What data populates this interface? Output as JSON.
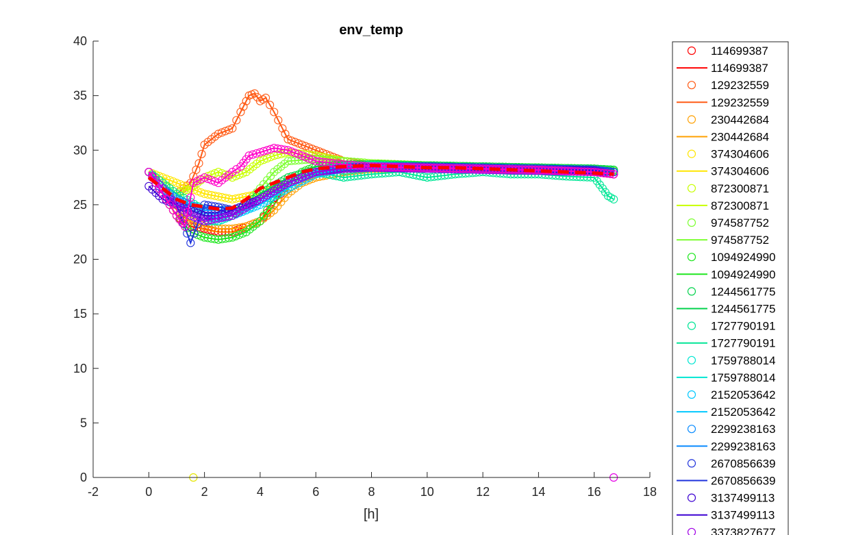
{
  "chart_data": {
    "type": "scatter",
    "title": "env_temp",
    "xlabel": "[h]",
    "ylabel": "",
    "xlim": [
      -2,
      18
    ],
    "ylim": [
      0,
      40
    ],
    "xticks": [
      -2,
      0,
      2,
      4,
      6,
      8,
      10,
      12,
      14,
      16,
      18
    ],
    "yticks": [
      0,
      5,
      10,
      15,
      20,
      25,
      30,
      35,
      40
    ],
    "grid": false,
    "legend_placement": "outside-right",
    "mean_line": {
      "color": "#ff0000",
      "style": "dashed",
      "x": [
        0,
        0.5,
        1,
        1.5,
        2,
        2.5,
        3,
        3.5,
        4,
        4.5,
        5,
        5.5,
        6,
        7,
        8,
        9,
        10,
        11,
        12,
        13,
        14,
        15,
        16,
        16.7
      ],
      "y": [
        27.5,
        26.5,
        25.5,
        25.0,
        24.8,
        24.6,
        24.7,
        25.5,
        26.5,
        27.0,
        27.5,
        28.0,
        28.3,
        28.5,
        28.6,
        28.5,
        28.4,
        28.4,
        28.3,
        28.2,
        28.1,
        28.0,
        27.9,
        27.8
      ]
    },
    "series": [
      {
        "name": "114699387",
        "color": "#ff0000",
        "x": [
          0,
          0.5,
          1,
          1.5,
          2,
          2.5,
          3,
          3.5,
          4,
          4.5,
          5,
          6,
          7,
          8,
          10,
          12,
          14,
          16,
          16.7
        ],
        "y": [
          28.0,
          26.0,
          24.0,
          23.0,
          22.8,
          22.5,
          22.5,
          23.0,
          23.5,
          25.0,
          27.0,
          28.0,
          28.5,
          28.6,
          28.5,
          28.4,
          28.2,
          28.0,
          27.8
        ]
      },
      {
        "name": "129232559",
        "color": "#ff5a14",
        "x": [
          0,
          0.5,
          1,
          1.5,
          1.8,
          2,
          2.5,
          3,
          3.3,
          3.6,
          3.8,
          4,
          4.2,
          4.5,
          4.8,
          5,
          5.5,
          6,
          6.5,
          7,
          8,
          10,
          12,
          14,
          16,
          16.7
        ],
        "y": [
          28.0,
          27.0,
          26.0,
          27.0,
          28.8,
          30.5,
          31.5,
          32.0,
          33.5,
          35.0,
          35.2,
          34.5,
          34.8,
          33.5,
          32.0,
          31.0,
          30.5,
          30.0,
          29.5,
          29.0,
          28.6,
          28.5,
          28.4,
          28.3,
          28.2,
          28.0
        ]
      },
      {
        "name": "230442684",
        "color": "#ffa000",
        "x": [
          0,
          0.5,
          1,
          1.5,
          2,
          2.5,
          3,
          3.5,
          4,
          4.5,
          5,
          5.5,
          6,
          7,
          8,
          10,
          12,
          14,
          16,
          16.7
        ],
        "y": [
          28.0,
          26.5,
          24.5,
          23.5,
          23.0,
          22.8,
          22.8,
          23.0,
          23.5,
          24.5,
          26.0,
          27.0,
          27.5,
          28.0,
          28.3,
          28.4,
          28.3,
          28.2,
          28.1,
          28.0
        ]
      },
      {
        "name": "374304606",
        "color": "#ffe600",
        "x": [
          0,
          0.5,
          1,
          1.5,
          2,
          3,
          4,
          5,
          6,
          7,
          8,
          10,
          12,
          14,
          16,
          16.7
        ],
        "y": [
          28.0,
          27.5,
          27.0,
          26.5,
          26.0,
          25.5,
          26.0,
          27.0,
          28.0,
          28.5,
          28.6,
          28.5,
          28.4,
          28.3,
          28.2,
          28.0
        ]
      },
      {
        "name": "872300871",
        "color": "#c8ff00",
        "x": [
          0,
          0.5,
          1,
          1.5,
          2,
          2.5,
          3,
          3.5,
          4,
          4.5,
          5,
          6,
          7,
          8,
          10,
          12,
          14,
          16,
          16.7
        ],
        "y": [
          28.0,
          27.0,
          26.0,
          26.5,
          27.5,
          28.0,
          27.5,
          28.0,
          29.0,
          29.5,
          29.8,
          29.5,
          29.0,
          28.8,
          28.6,
          28.5,
          28.4,
          28.3,
          28.1
        ]
      },
      {
        "name": "974587752",
        "color": "#7dff32",
        "x": [
          0,
          0.5,
          1,
          1.5,
          2,
          2.5,
          3,
          3.5,
          4,
          4.5,
          5,
          6,
          7,
          8,
          10,
          12,
          14,
          16,
          16.7
        ],
        "y": [
          28.0,
          27.0,
          25.5,
          24.5,
          24.0,
          23.8,
          24.0,
          25.0,
          26.5,
          28.0,
          29.0,
          29.2,
          29.0,
          28.8,
          28.6,
          28.5,
          28.4,
          28.3,
          28.1
        ]
      },
      {
        "name": "1094924990",
        "color": "#1ee61e",
        "x": [
          0,
          0.5,
          1,
          1.5,
          2,
          2.5,
          3,
          3.5,
          4,
          4.5,
          5,
          5.5,
          6,
          7,
          8,
          10,
          12,
          14,
          16,
          16.7
        ],
        "y": [
          28.0,
          26.0,
          24.0,
          22.5,
          22.0,
          21.8,
          22.0,
          22.5,
          23.5,
          25.5,
          27.0,
          28.0,
          28.5,
          28.7,
          28.7,
          28.6,
          28.5,
          28.4,
          28.3,
          28.2
        ]
      },
      {
        "name": "1244561775",
        "color": "#00d24b",
        "x": [
          0,
          0.5,
          1,
          1.5,
          2,
          2.5,
          3,
          3.5,
          4,
          5,
          6,
          7,
          8,
          10,
          12,
          14,
          16,
          16.7
        ],
        "y": [
          28.0,
          26.5,
          25.0,
          24.0,
          23.5,
          23.5,
          24.0,
          25.0,
          26.0,
          27.5,
          28.2,
          28.6,
          28.7,
          28.6,
          28.5,
          28.4,
          28.3,
          28.2
        ]
      },
      {
        "name": "1727790191",
        "color": "#00e696",
        "x": [
          0,
          1,
          2,
          3,
          4,
          5,
          6,
          7,
          8,
          9,
          10,
          11,
          12,
          13,
          14,
          15,
          16,
          16.3,
          16.5,
          16.7
        ],
        "y": [
          28.0,
          26.0,
          24.5,
          24.5,
          25.5,
          27.0,
          28.0,
          27.5,
          27.8,
          28.0,
          27.5,
          27.8,
          28.0,
          27.8,
          27.8,
          27.6,
          27.5,
          26.5,
          25.8,
          25.5
        ]
      },
      {
        "name": "1759788014",
        "color": "#00e6d2",
        "x": [
          0,
          0.5,
          1,
          1.5,
          2,
          2.5,
          3,
          3.5,
          4,
          5,
          6,
          7,
          8,
          10,
          12,
          14,
          16,
          16.7
        ],
        "y": [
          28.0,
          26.5,
          25.0,
          24.0,
          23.5,
          23.5,
          24.0,
          24.5,
          25.5,
          27.0,
          28.0,
          28.5,
          28.6,
          28.5,
          28.4,
          28.3,
          28.2,
          28.0
        ]
      },
      {
        "name": "2152053642",
        "color": "#00c8ff",
        "x": [
          0,
          0.5,
          1,
          1.5,
          2,
          2.5,
          3,
          3.5,
          4,
          5,
          6,
          7,
          8,
          10,
          12,
          14,
          16,
          16.7
        ],
        "y": [
          28.0,
          26.5,
          25.5,
          24.5,
          24.0,
          23.8,
          24.0,
          24.5,
          25.0,
          26.5,
          27.8,
          28.3,
          28.5,
          28.4,
          28.3,
          28.2,
          28.1,
          28.0
        ]
      },
      {
        "name": "2299238163",
        "color": "#0a8cff",
        "x": [
          0,
          0.5,
          1,
          1.5,
          2,
          2.5,
          3,
          3.5,
          4,
          5,
          6,
          7,
          8,
          10,
          12,
          14,
          16,
          16.7
        ],
        "y": [
          28.0,
          26.5,
          25.5,
          25.0,
          24.5,
          24.5,
          24.5,
          25.0,
          25.5,
          27.0,
          28.0,
          28.4,
          28.5,
          28.5,
          28.4,
          28.3,
          28.2,
          28.0
        ]
      },
      {
        "name": "2670856639",
        "color": "#1e32dc",
        "x": [
          0,
          0.5,
          1,
          1.5,
          2,
          2.5,
          3,
          3.5,
          4,
          5,
          6,
          7,
          8,
          10,
          12,
          14,
          16,
          16.7
        ],
        "y": [
          28.0,
          26.0,
          25.0,
          21.5,
          25.0,
          24.8,
          24.5,
          25.0,
          25.5,
          27.0,
          28.0,
          28.4,
          28.5,
          28.5,
          28.4,
          28.3,
          28.2,
          28.0
        ]
      },
      {
        "name": "3137499113",
        "color": "#3c00d2",
        "x": [
          0,
          0.5,
          1,
          1.5,
          2,
          2.5,
          3,
          3.5,
          4,
          5,
          6,
          7,
          8,
          10,
          12,
          14,
          16,
          16.7
        ],
        "y": [
          26.7,
          25.5,
          25.0,
          24.5,
          24.0,
          24.0,
          24.5,
          25.0,
          25.5,
          27.0,
          28.0,
          28.3,
          28.4,
          28.4,
          28.3,
          28.2,
          28.1,
          27.8
        ]
      },
      {
        "name": "3373827677",
        "color": "#a000e6",
        "x": [
          0,
          0.5,
          1,
          1.5,
          2,
          3,
          4,
          5,
          6,
          7,
          8,
          10,
          12,
          14,
          16,
          16.7
        ],
        "y": [
          28.0,
          26.5,
          25.0,
          24.0,
          23.5,
          24.0,
          25.5,
          27.0,
          28.0,
          28.3,
          28.4,
          28.3,
          28.2,
          28.1,
          28.0,
          27.8
        ]
      },
      {
        "name": "",
        "color": "#ff00c8",
        "x": [
          0,
          0.5,
          1,
          1.3,
          1.6,
          2,
          2.5,
          3,
          3.3,
          3.6,
          4,
          4.5,
          5,
          5.5,
          6,
          7,
          8,
          10,
          12,
          14,
          16,
          16.7
        ],
        "y": [
          28.0,
          26.0,
          24.0,
          23.0,
          27.0,
          27.5,
          27.0,
          28.0,
          28.5,
          29.5,
          29.8,
          30.2,
          30.0,
          29.5,
          29.0,
          28.7,
          28.5,
          28.4,
          28.3,
          28.2,
          28.0,
          27.8
        ]
      }
    ],
    "outliers": [
      {
        "x": 1.6,
        "y": 0,
        "color": "#e6e600"
      },
      {
        "x": 16.7,
        "y": 0,
        "color": "#e600e6"
      }
    ],
    "legend_entries": [
      {
        "label": "114699387",
        "marker": "circle",
        "color": "#ff0000"
      },
      {
        "label": "114699387",
        "marker": "line",
        "color": "#ff0000"
      },
      {
        "label": "129232559",
        "marker": "circle",
        "color": "#ff5a14"
      },
      {
        "label": "129232559",
        "marker": "line",
        "color": "#ff5a14"
      },
      {
        "label": "230442684",
        "marker": "circle",
        "color": "#ffa000"
      },
      {
        "label": "230442684",
        "marker": "line",
        "color": "#ffa000"
      },
      {
        "label": "374304606",
        "marker": "circle",
        "color": "#ffe600"
      },
      {
        "label": "374304606",
        "marker": "line",
        "color": "#ffe600"
      },
      {
        "label": "872300871",
        "marker": "circle",
        "color": "#c8ff00"
      },
      {
        "label": "872300871",
        "marker": "line",
        "color": "#c8ff00"
      },
      {
        "label": "974587752",
        "marker": "circle",
        "color": "#7dff32"
      },
      {
        "label": "974587752",
        "marker": "line",
        "color": "#7dff32"
      },
      {
        "label": "1094924990",
        "marker": "circle",
        "color": "#1ee61e"
      },
      {
        "label": "1094924990",
        "marker": "line",
        "color": "#1ee61e"
      },
      {
        "label": "1244561775",
        "marker": "circle",
        "color": "#00d24b"
      },
      {
        "label": "1244561775",
        "marker": "line",
        "color": "#00d24b"
      },
      {
        "label": "1727790191",
        "marker": "circle",
        "color": "#00e696"
      },
      {
        "label": "1727790191",
        "marker": "line",
        "color": "#00e696"
      },
      {
        "label": "1759788014",
        "marker": "circle",
        "color": "#00e6d2"
      },
      {
        "label": "1759788014",
        "marker": "line",
        "color": "#00e6d2"
      },
      {
        "label": "2152053642",
        "marker": "circle",
        "color": "#00c8ff"
      },
      {
        "label": "2152053642",
        "marker": "line",
        "color": "#00c8ff"
      },
      {
        "label": "2299238163",
        "marker": "circle",
        "color": "#0a8cff"
      },
      {
        "label": "2299238163",
        "marker": "line",
        "color": "#0a8cff"
      },
      {
        "label": "2670856639",
        "marker": "circle",
        "color": "#1e32dc"
      },
      {
        "label": "2670856639",
        "marker": "line",
        "color": "#1e32dc"
      },
      {
        "label": "3137499113",
        "marker": "circle",
        "color": "#3c00d2"
      },
      {
        "label": "3137499113",
        "marker": "line",
        "color": "#3c00d2"
      },
      {
        "label": "3373827677",
        "marker": "circle",
        "color": "#a000e6"
      }
    ]
  }
}
